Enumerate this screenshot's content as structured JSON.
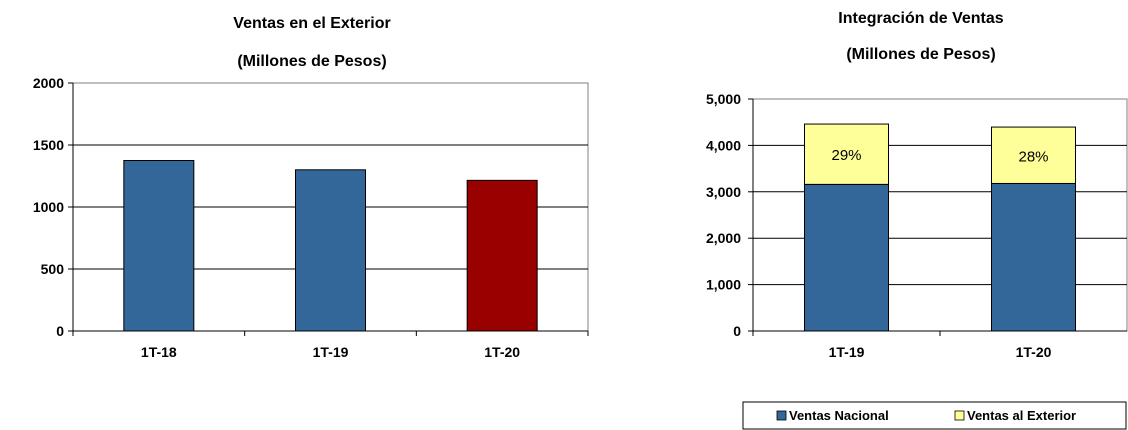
{
  "chart_data": [
    {
      "type": "bar",
      "title": "Ventas en el Exterior",
      "subtitle": "(Millones de Pesos)",
      "categories": [
        "1T-18",
        "1T-19",
        "1T-20"
      ],
      "values": [
        1375,
        1300,
        1215
      ],
      "colors": [
        "#336699",
        "#336699",
        "#990000"
      ],
      "ylim": [
        0,
        2000
      ],
      "yticks": [
        "0",
        "500",
        "1000",
        "1500",
        "2000"
      ],
      "grid": true,
      "xlabel": "",
      "ylabel": ""
    },
    {
      "type": "bar",
      "stacked": true,
      "title": "Integración de Ventas",
      "subtitle": "(Millones de Pesos)",
      "categories": [
        "1T-19",
        "1T-20"
      ],
      "series": [
        {
          "name": "Ventas Nacional",
          "values": [
            3160,
            3180
          ],
          "color": "#336699",
          "labels": [
            "",
            ""
          ]
        },
        {
          "name": "Ventas al Exterior",
          "values": [
            1300,
            1215
          ],
          "color": "#FFFF99",
          "labels": [
            "29%",
            "28%"
          ]
        }
      ],
      "ylim": [
        0,
        5000
      ],
      "yticks": [
        "0",
        "1,000",
        "2,000",
        "3,000",
        "4,000",
        "5,000"
      ],
      "grid": true,
      "legend_position": "bottom-right",
      "xlabel": "",
      "ylabel": ""
    }
  ]
}
